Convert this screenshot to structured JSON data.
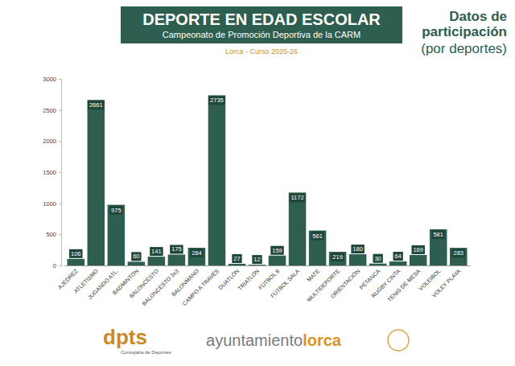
{
  "chart_data": {
    "type": "bar",
    "title": "DEPORTE EN EDAD ESCOLAR",
    "subtitle": "Campeonato de Promoción Deportiva de la CARM",
    "annotations": [
      "Lorca - Curso 2025-26",
      "Datos de participación",
      "(por deportes)"
    ],
    "categories": [
      "AJEDREZ",
      "ATLETISMO",
      "JUGANDO ATL.",
      "BADMINTON",
      "BALONCESTO",
      "BALONCESTO 3x3",
      "BALONMANO",
      "CAMPO A TRAVÉS",
      "DUATLÓN",
      "TRIATLON",
      "FÚTBOL 8",
      "FÚTBOL SALA",
      "MATE",
      "MULTIDEPORTE",
      "ORIENTACIÓN",
      "PETANCA",
      "RUGBY CINTA",
      "TENIS DE MESA",
      "VOLEIBOL",
      "VOLEY PLAYA"
    ],
    "values": [
      106,
      2661,
      975,
      60,
      141,
      175,
      284,
      2735,
      27,
      12,
      159,
      1172,
      561,
      219,
      180,
      30,
      64,
      169,
      581,
      283
    ],
    "color": "#2d5e4f",
    "ylim": [
      0,
      3000
    ],
    "yticks": [
      0,
      500,
      1000,
      1500,
      2000,
      2500,
      3000
    ],
    "grid": false,
    "data_labels": true
  },
  "footer": {
    "logo": "dpts",
    "logo_caption": "Concejalía de Deportes",
    "brand": "ayuntamiento",
    "brand_place": "lorca"
  }
}
